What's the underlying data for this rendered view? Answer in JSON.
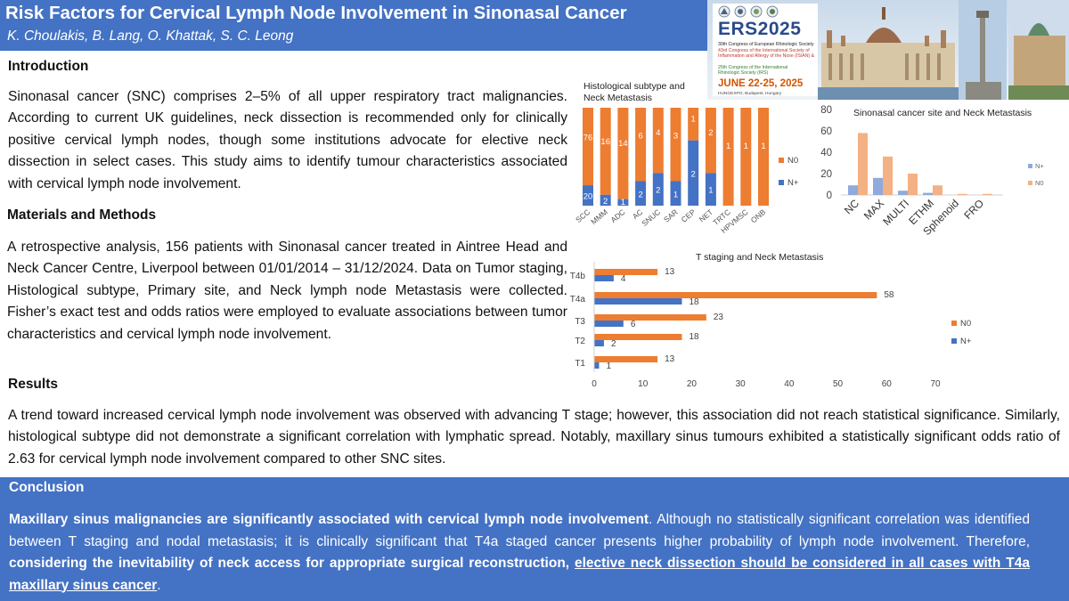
{
  "header": {
    "title": "Risk Factors for Cervical Lymph Node Involvement in Sinonasal Cancer",
    "authors": "K. Choulakis, B. Lang, O. Khattak, S. C. Leong"
  },
  "banner": {
    "ers_title": "ERS2025",
    "line1": "30th Congress of European Rhinologic Society",
    "line2": "43rd Congress of the International Society of",
    "line3": "Inflammation and Allergy of the Nose (ISIAN) &",
    "line4": "",
    "line5": "25th Congress of the International",
    "line6": "Rhinologic Society (IRS)",
    "date": "JUNE 22-25, 2025",
    "venue": "HUNGEXPO, Budapest, Hungary"
  },
  "intro": {
    "heading": "Introduction",
    "text": "Sinonasal cancer (SNC) comprises 2–5% of all upper respiratory tract malignancies. According to current UK guidelines, neck dissection is recommended only for clinically positive cervical lymph nodes, though some institutions advocate for elective neck dissection in select cases. This study aims to identify tumour characteristics associated with cervical lymph node involvement."
  },
  "methods": {
    "heading": "Materials and Methods",
    "text": "A retrospective analysis, 156 patients with Sinonasal cancer treated in Aintree Head and Neck Cancer Centre, Liverpool between 01/01/2014 – 31/12/2024. Data on Tumor staging, Histological subtype, Primary site, and Neck lymph node Metastasis were collected. Fisher’s exact test and odds ratios were employed to evaluate associations between tumor characteristics and cervical lymph node involvement."
  },
  "results": {
    "heading": "Results",
    "text": "A trend toward increased cervical lymph node involvement was observed with advancing T stage; however, this association did not reach statistical significance. Similarly, histological subtype did not demonstrate a significant correlation with lymphatic spread. Notably, maxillary sinus tumours exhibited a statistically significant odds ratio of 2.63 for cervical lymph node involvement compared to other SNC sites."
  },
  "conclusion": {
    "heading": "Conclusion",
    "part1_bold": "Maxillary sinus malignancies are significantly associated with cervical lymph node involvement",
    "part2": ". Although no statistically significant correlation was identified between T staging  and nodal metastasis; it is clinically significant that T4a staged cancer presents higher probability of lymph node involvement. Therefore, ",
    "part3_bold": "considering the inevitability of neck access for appropriate surgical reconstruction, ",
    "part4_underline": "elective neck dissection should be considered in all cases with T4a maxillary sinus cancer",
    "part5": "."
  },
  "colors": {
    "n0": "#ed7d31",
    "nplus": "#4472c4",
    "n0_light": "#f4b183",
    "nplus_light": "#8faadc"
  },
  "chart_data": [
    {
      "type": "bar",
      "stacking": "percent",
      "title": "Histological subtype and Neck Metastasis",
      "categories": [
        "SCC",
        "MMM",
        "ADC",
        "AC",
        "SNUC",
        "SAR",
        "CEP",
        "NET",
        "TRTC",
        "HPVMSC",
        "ONB"
      ],
      "series": [
        {
          "name": "N+",
          "values": [
            20,
            2,
            1,
            2,
            2,
            1,
            2,
            1,
            0,
            0,
            0
          ]
        },
        {
          "name": "N0",
          "values": [
            76,
            16,
            14,
            6,
            4,
            3,
            1,
            2,
            1,
            1,
            1
          ]
        }
      ],
      "legend": "right",
      "grid": false
    },
    {
      "type": "bar",
      "title": "Sinonasal cancer site and Neck Metastasis",
      "categories": [
        "NC",
        "MAX",
        "MULTI",
        "ETHM",
        "Sphenoid",
        "FRO"
      ],
      "series": [
        {
          "name": "N+",
          "values": [
            9,
            16,
            4,
            2,
            0,
            0
          ]
        },
        {
          "name": "N0",
          "values": [
            58,
            36,
            20,
            9,
            1,
            1
          ]
        }
      ],
      "ylim": [
        0,
        80
      ],
      "yticks": [
        0,
        20,
        40,
        60,
        80
      ],
      "legend": "right",
      "grid": false
    },
    {
      "type": "bar",
      "orientation": "horizontal",
      "title": "T staging and Neck Metastasis",
      "categories": [
        "T4b",
        "T4a",
        "T3",
        "T2",
        "T1"
      ],
      "series": [
        {
          "name": "N0",
          "values": [
            13,
            58,
            23,
            18,
            13
          ]
        },
        {
          "name": "N+",
          "values": [
            4,
            18,
            6,
            2,
            1
          ]
        }
      ],
      "xlim": [
        0,
        70
      ],
      "xticks": [
        0,
        10,
        20,
        30,
        40,
        50,
        60,
        70
      ],
      "legend": "right",
      "grid": false
    }
  ]
}
